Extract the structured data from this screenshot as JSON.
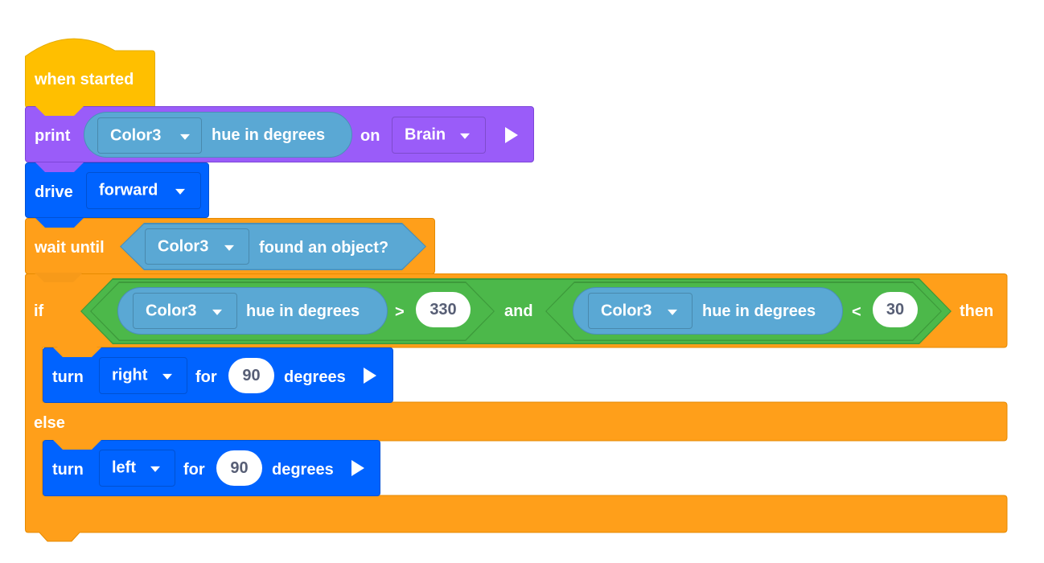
{
  "colors": {
    "events": "#ffbf00",
    "looks": "#9a5cf9",
    "motion": "#0063ff",
    "control": "#ff9f1a",
    "sensing": "#5aa8d4",
    "operators": "#4cb84a",
    "value_text": "#575e75"
  },
  "blocks": {
    "when_started": {
      "label": "when started"
    },
    "print": {
      "label": "print",
      "sensor": "Color3",
      "reporter": "hue in degrees",
      "on": "on",
      "target": "Brain",
      "run_icon": "play-icon"
    },
    "drive": {
      "label": "drive",
      "direction": "forward"
    },
    "wait_until": {
      "label": "wait until",
      "sensor": "Color3",
      "condition": "found an object?"
    },
    "if_else": {
      "if_label": "if",
      "then_label": "then",
      "else_label": "else",
      "left": {
        "sensor": "Color3",
        "reporter": "hue in degrees",
        "operator": ">",
        "value": "330"
      },
      "and_label": "and",
      "right": {
        "sensor": "Color3",
        "reporter": "hue in degrees",
        "operator": "<",
        "value": "30"
      }
    },
    "turn_right": {
      "label": "turn",
      "direction": "right",
      "for": "for",
      "value": "90",
      "unit": "degrees"
    },
    "turn_left": {
      "label": "turn",
      "direction": "left",
      "for": "for",
      "value": "90",
      "unit": "degrees"
    }
  }
}
